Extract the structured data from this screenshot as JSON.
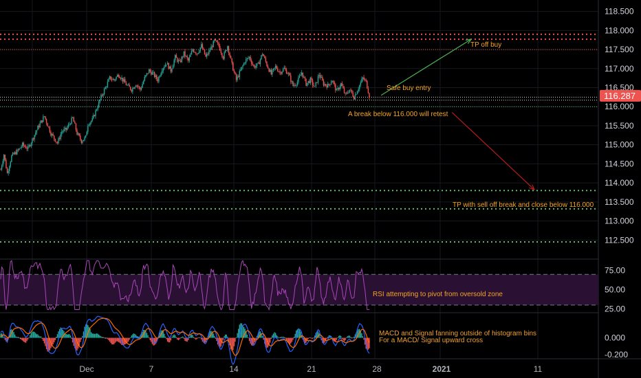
{
  "chart_data": [
    {
      "type": "candlestick",
      "panel": "price",
      "ylim": [
        112.0,
        118.8
      ],
      "y_ticks": [
        "118.500",
        "118.000",
        "117.500",
        "117.000",
        "116.500",
        "116.000",
        "115.500",
        "115.000",
        "114.500",
        "114.000",
        "113.500",
        "113.000",
        "112.500"
      ],
      "x_ticks": [
        "Dec",
        "7",
        "14",
        "21",
        "28",
        "2021",
        "11"
      ],
      "last_price": "116.287",
      "grid": true,
      "colors": {
        "up": "#26a69a",
        "down": "#ef5350",
        "price_badge": "#ef5350"
      },
      "key_prices": [
        {
          "p": 117.9,
          "color": "#ef5350",
          "style": "dots"
        },
        {
          "p": 117.77,
          "color": "#ef5350",
          "style": "dots"
        },
        {
          "p": 117.5,
          "color": "#ef5350",
          "style": "dense"
        },
        {
          "p": 116.25,
          "color": "#e0e0e0",
          "style": "dense"
        },
        {
          "p": 116.17,
          "color": "#e0e0e0",
          "style": "dense"
        },
        {
          "p": 116.0,
          "color": "#66bb6a",
          "style": "dense"
        },
        {
          "p": 113.8,
          "color": "#66bb6a",
          "style": "dots"
        },
        {
          "p": 113.32,
          "color": "#66bb6a",
          "style": "dots"
        },
        {
          "p": 112.45,
          "color": "#66bb6a",
          "style": "dots"
        }
      ],
      "trend_anchors": [
        [
          0,
          114.35
        ],
        [
          3,
          114.75
        ],
        [
          6,
          114.25
        ],
        [
          10,
          114.7
        ],
        [
          16,
          114.85
        ],
        [
          20,
          115.0
        ],
        [
          25,
          114.9
        ],
        [
          30,
          115.2
        ],
        [
          34,
          115.45
        ],
        [
          40,
          115.75
        ],
        [
          46,
          115.3
        ],
        [
          52,
          115.05
        ],
        [
          56,
          115.35
        ],
        [
          60,
          115.4
        ],
        [
          66,
          115.7
        ],
        [
          70,
          115.3
        ],
        [
          74,
          115.1
        ],
        [
          78,
          115.2
        ],
        [
          80,
          115.55
        ],
        [
          84,
          115.65
        ],
        [
          88,
          115.95
        ],
        [
          92,
          116.25
        ],
        [
          96,
          116.5
        ],
        [
          100,
          116.75
        ],
        [
          104,
          116.7
        ],
        [
          108,
          116.85
        ],
        [
          112,
          116.7
        ],
        [
          116,
          116.55
        ],
        [
          120,
          116.45
        ],
        [
          124,
          116.6
        ],
        [
          128,
          116.45
        ],
        [
          132,
          116.75
        ],
        [
          136,
          116.95
        ],
        [
          140,
          116.85
        ],
        [
          144,
          116.7
        ],
        [
          148,
          117.0
        ],
        [
          152,
          117.15
        ],
        [
          156,
          116.95
        ],
        [
          160,
          117.3
        ],
        [
          164,
          117.15
        ],
        [
          168,
          117.4
        ],
        [
          172,
          117.2
        ],
        [
          176,
          117.5
        ],
        [
          180,
          117.4
        ],
        [
          184,
          117.6
        ],
        [
          188,
          117.3
        ],
        [
          192,
          117.5
        ],
        [
          196,
          117.72
        ],
        [
          200,
          117.6
        ],
        [
          204,
          117.3
        ],
        [
          208,
          117.6
        ],
        [
          212,
          117.1
        ],
        [
          216,
          116.7
        ],
        [
          220,
          116.95
        ],
        [
          224,
          117.2
        ],
        [
          228,
          117.3
        ],
        [
          232,
          117.05
        ],
        [
          236,
          117.1
        ],
        [
          240,
          117.4
        ],
        [
          244,
          117.1
        ],
        [
          248,
          116.85
        ],
        [
          252,
          117.05
        ],
        [
          256,
          116.9
        ],
        [
          260,
          117.0
        ],
        [
          264,
          116.85
        ],
        [
          268,
          116.55
        ],
        [
          272,
          116.65
        ],
        [
          276,
          116.9
        ],
        [
          280,
          116.6
        ],
        [
          284,
          116.7
        ],
        [
          288,
          116.5
        ],
        [
          292,
          116.85
        ],
        [
          296,
          116.6
        ],
        [
          300,
          116.55
        ],
        [
          304,
          116.7
        ],
        [
          308,
          116.4
        ],
        [
          312,
          116.6
        ],
        [
          316,
          116.3
        ],
        [
          320,
          116.45
        ],
        [
          324,
          116.25
        ],
        [
          328,
          116.5
        ],
        [
          332,
          116.75
        ],
        [
          335,
          116.65
        ],
        [
          338,
          116.287
        ]
      ],
      "annotations": [
        {
          "text": "TP off buy",
          "color": "#f5a623"
        },
        {
          "text": "Safe buy entry",
          "color": "#f5a623"
        },
        {
          "text": "A break below 116.000 will retest",
          "color": "#f5a623"
        },
        {
          "text": "TP with sell off break and close below 116.000",
          "color": "#f5a623"
        }
      ],
      "arrows": [
        {
          "from": [
            340,
            116.3
          ],
          "to": [
            420,
            117.77
          ],
          "color": "#4caf50"
        },
        {
          "from": [
            405,
            115.85
          ],
          "to": [
            478,
            113.82
          ],
          "color": "#b71c1c"
        }
      ]
    },
    {
      "type": "line",
      "panel": "rsi",
      "ylim": [
        20,
        90
      ],
      "y_ticks": [
        "75.00",
        "50.00",
        "25.00"
      ],
      "levels": [
        70,
        30
      ],
      "color": "#ab47bc",
      "band_color": "#2a1033",
      "annotation": "RSI attempting to pivot from oversold zone"
    },
    {
      "type": "line+histogram",
      "panel": "macd",
      "ylim": [
        -0.25,
        0.3
      ],
      "y_ticks": [
        "0.000",
        "-0.200"
      ],
      "series": [
        {
          "name": "MACD",
          "color": "#2962ff"
        },
        {
          "name": "Signal",
          "color": "#ff6d00"
        }
      ],
      "histogram_colors": {
        "pos_strong": "#26a69a",
        "pos_weak": "#b2dfdb",
        "neg_strong": "#ef5350",
        "neg_weak": "#ffcdd2"
      },
      "annotation_lines": [
        "MACD and Signal fanning outside of histogram bins",
        "For a MACD/ Signal upward cross"
      ]
    }
  ]
}
